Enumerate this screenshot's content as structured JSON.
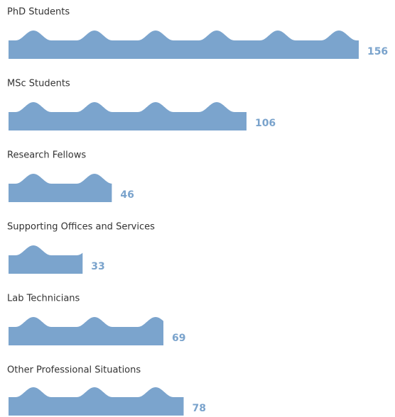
{
  "chart_data": {
    "type": "bar",
    "categories": [
      "PhD Students",
      "MSc Students",
      "Research Fellows",
      "Supporting Offices and Services",
      "Lab Technicians",
      "Other Professional Situations"
    ],
    "values": [
      156,
      106,
      46,
      33,
      69,
      78
    ],
    "color": "#7ba4cd",
    "label_color": "#7aa3cc"
  }
}
